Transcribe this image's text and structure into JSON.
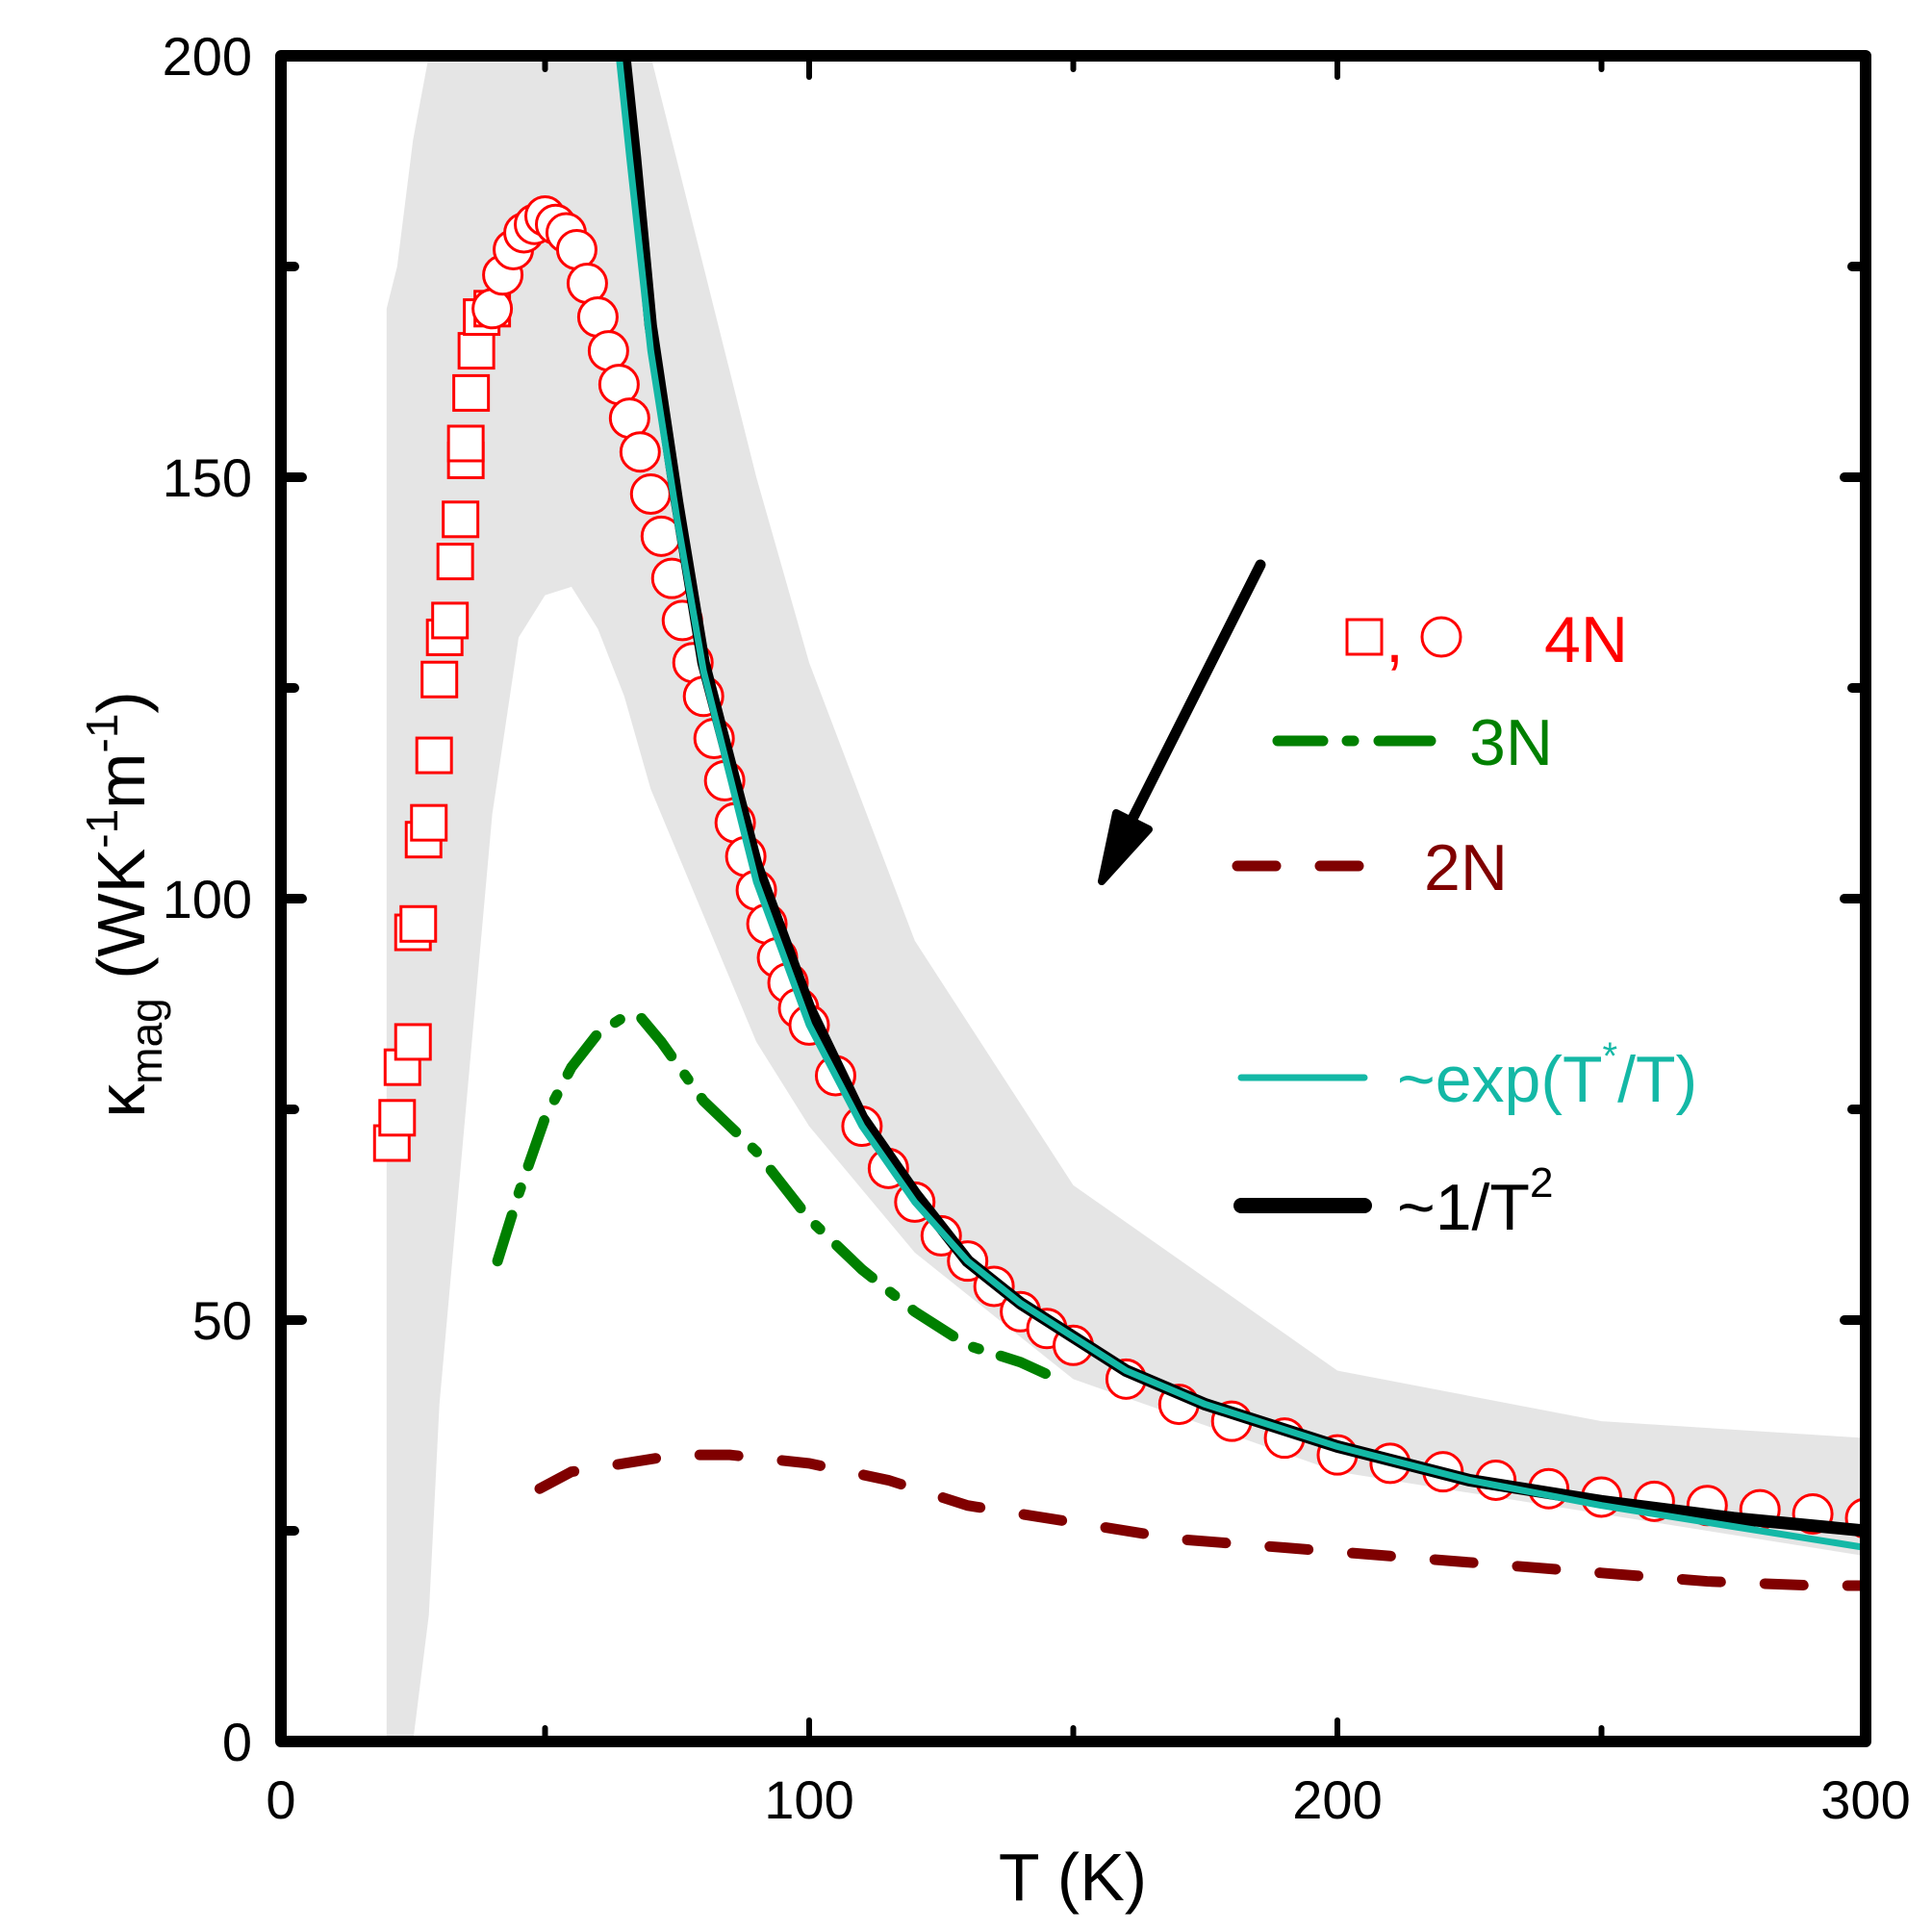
{
  "chart_data": {
    "type": "scatter",
    "title": "",
    "xlabel": "T (K)",
    "ylabel": "κ_mag (WK^-1 m^-1)",
    "ylabel_parts": {
      "symbol": "κ",
      "sub": "mag",
      "unit_open": "(WK",
      "sup1": "-1",
      "unit_mid": "m",
      "sup2": "-1",
      "unit_close": ")"
    },
    "xlim": [
      0,
      300
    ],
    "ylim": [
      0,
      200
    ],
    "x_ticks": [
      "0",
      "100",
      "200",
      "300"
    ],
    "y_ticks": [
      "0",
      "50",
      "100",
      "150",
      "200"
    ],
    "grid": false,
    "legend_position": "right, inside",
    "colors": {
      "4N": "#ff0000",
      "3N": "#008000",
      "2N": "#800000",
      "exp": "#14b8a6",
      "inv_T2": "#000000",
      "band": "#e5e5e5"
    },
    "series": [
      {
        "name": "4N (squares)",
        "style": "open squares",
        "color": "#ff0000",
        "x": [
          21,
          22,
          23,
          25,
          25,
          26,
          27,
          28,
          29,
          30,
          31,
          32,
          33,
          34,
          35,
          35,
          36,
          37,
          38,
          40
        ],
        "y": [
          71,
          74,
          80,
          83,
          96,
          97,
          107,
          109,
          117,
          126,
          131,
          133,
          140,
          145,
          152,
          154,
          160,
          165,
          169,
          170
        ]
      },
      {
        "name": "4N (circles)",
        "style": "open circles",
        "color": "#ff0000",
        "x": [
          40,
          42,
          44,
          46,
          48,
          50,
          52,
          54,
          56,
          58,
          60,
          62,
          64,
          66,
          68,
          70,
          72,
          74,
          76,
          78,
          80,
          82,
          84,
          86,
          88,
          90,
          92,
          94,
          96,
          98,
          100,
          105,
          110,
          115,
          120,
          125,
          130,
          135,
          140,
          145,
          150,
          160,
          170,
          180,
          190,
          200,
          210,
          220,
          230,
          240,
          250,
          260,
          270,
          280,
          290,
          300
        ],
        "y": [
          170,
          174,
          177,
          179,
          180,
          181,
          180,
          179,
          177,
          173,
          169,
          165,
          161,
          157,
          153,
          148,
          143,
          138,
          133,
          128,
          124,
          119,
          114,
          109,
          105,
          101,
          97,
          93,
          90,
          87,
          85,
          79,
          73,
          68,
          64,
          60,
          57,
          54,
          51,
          49,
          47,
          43,
          40,
          38,
          36,
          34,
          33,
          32,
          31,
          30,
          29,
          28.5,
          28,
          27.5,
          27,
          26.5
        ]
      },
      {
        "name": "3N",
        "style": "dash-dot line",
        "color": "#008000",
        "x": [
          41,
          45,
          50,
          55,
          60,
          65,
          68,
          72,
          80,
          90,
          100,
          110,
          120,
          130,
          140,
          147
        ],
        "y": [
          57,
          65,
          74,
          80,
          84,
          86,
          86,
          83,
          76,
          70,
          62,
          56,
          51,
          47,
          45,
          43
        ]
      },
      {
        "name": "2N",
        "style": "dashed line",
        "color": "#800000",
        "x": [
          49,
          55,
          65,
          75,
          85,
          100,
          115,
          130,
          150,
          170,
          190,
          210,
          230,
          250,
          270,
          290,
          300
        ],
        "y": [
          30,
          32,
          33,
          34,
          34,
          33,
          31,
          28,
          26,
          24,
          23,
          22,
          21,
          20,
          19,
          18.5,
          18.5
        ]
      },
      {
        "name": "~exp(T*/T)",
        "style": "solid line",
        "color": "#14b8a6",
        "x": [
          64,
          66,
          70,
          75,
          80,
          90,
          100,
          110,
          120,
          130,
          140,
          150,
          160,
          175,
          200,
          225,
          250,
          275,
          300
        ],
        "y": [
          200,
          188,
          165,
          145,
          127,
          102,
          85,
          73,
          64,
          57,
          52,
          48,
          44,
          40,
          35,
          31,
          28,
          25.5,
          23
        ]
      },
      {
        "name": "~1/T^2",
        "style": "thick solid line",
        "color": "#000000",
        "x": [
          65,
          67,
          70,
          75,
          80,
          90,
          100,
          110,
          120,
          130,
          140,
          150,
          160,
          175,
          200,
          225,
          250,
          275,
          300
        ],
        "y": [
          200,
          188,
          168,
          147,
          128,
          104,
          87,
          74,
          65,
          57,
          52,
          48,
          44,
          40,
          35,
          31,
          28.5,
          26.5,
          25
        ]
      }
    ],
    "uncertainty_band": {
      "color": "#e5e5e5",
      "x": [
        20,
        22,
        25,
        28,
        30,
        35,
        40,
        45,
        50,
        55,
        60,
        65,
        70,
        80,
        90,
        100,
        120,
        150,
        200,
        250,
        300
      ],
      "upper": [
        170,
        175,
        190,
        200,
        200,
        200,
        200,
        200,
        200,
        200,
        200,
        200,
        200,
        175,
        150,
        128,
        95,
        66,
        44,
        38,
        36
      ],
      "lower": [
        0,
        0,
        0,
        15,
        40,
        75,
        110,
        131,
        136,
        137,
        132,
        124,
        113,
        98,
        83,
        73,
        58,
        43,
        32,
        27,
        22
      ]
    },
    "annotations": [
      {
        "type": "arrow",
        "from": [
          185,
          140
        ],
        "to": [
          155,
          102
        ],
        "color": "#000000"
      }
    ]
  },
  "legend": {
    "items": [
      {
        "label": "4N",
        "symbol_text": "□, ○",
        "color": "#ff0000"
      },
      {
        "label": "3N",
        "color": "#008000"
      },
      {
        "label": "2N",
        "color": "#800000"
      },
      {
        "label_prefix": "~exp(T",
        "label_sup": "*",
        "label_suffix": "/T)",
        "color": "#14b8a6"
      },
      {
        "label_prefix": "~1/T",
        "label_sup": "2",
        "color": "#000000"
      }
    ]
  }
}
